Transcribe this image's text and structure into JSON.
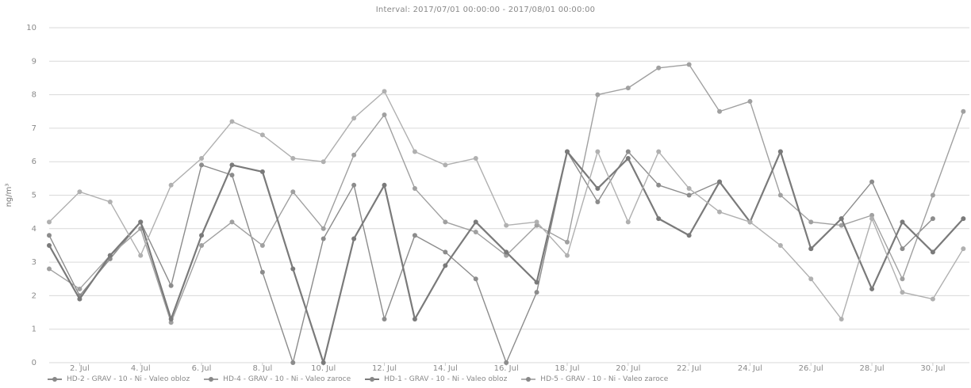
{
  "chart_data": {
    "type": "line",
    "title": "Interval: 2017/07/01 00:00:00 - 2017/08/01 00:00:00",
    "ylabel": "ng/m³",
    "ylim": [
      0,
      10
    ],
    "yticks": [
      0,
      1,
      2,
      3,
      4,
      5,
      6,
      7,
      8,
      9,
      10
    ],
    "xlim": [
      1,
      31.2
    ],
    "xtick_values": [
      2,
      4,
      6,
      8,
      10,
      12,
      14,
      16,
      18,
      20,
      22,
      24,
      26,
      28,
      30
    ],
    "xtick_labels": [
      "2. Jul",
      "4. Jul",
      "6. Jul",
      "8. Jul",
      "10. Jul",
      "12. Jul",
      "14. Jul",
      "16. Jul",
      "18. Jul",
      "20. Jul",
      "22. Jul",
      "24. Jul",
      "26. Jul",
      "28. Jul",
      "30. Jul"
    ],
    "grid": true,
    "legend_position": "bottom",
    "series": [
      {
        "name": "HD-2 - GRAV - 10 - Ni - Valeo obloz",
        "color": "#8c8c8c",
        "values": [
          3.8,
          2.0,
          3.1,
          4.2,
          2.3,
          5.9,
          5.6,
          2.7,
          0.0,
          3.7,
          5.3,
          1.3,
          3.8,
          3.3,
          2.5,
          0.0,
          2.1,
          6.3,
          4.8,
          6.3,
          5.3,
          5.0,
          5.4,
          4.2,
          6.3,
          3.4,
          4.3,
          5.4,
          3.4,
          4.3
        ]
      },
      {
        "name": "HD-4 - GRAV - 10 - Ni - Valeo zaroce",
        "color": "#a0a0a0",
        "values": [
          2.8,
          2.2,
          3.2,
          4.0,
          1.2,
          3.5,
          4.2,
          3.5,
          5.1,
          4.0,
          6.2,
          7.4,
          5.2,
          4.2,
          3.9,
          3.2,
          4.1,
          3.6,
          8.0,
          8.2,
          8.8,
          8.9,
          7.5,
          7.8,
          5.0,
          4.2,
          4.1,
          4.4,
          2.5,
          5.0,
          7.5
        ]
      },
      {
        "name": "HD-1 - GRAV - 10 - Ni - Valeo obloz",
        "color": "#7a7a7a",
        "values": [
          3.5,
          1.9,
          3.2,
          4.2,
          1.3,
          3.8,
          5.9,
          5.7,
          2.8,
          0.0,
          3.7,
          5.3,
          1.3,
          2.9,
          4.2,
          3.3,
          2.4,
          6.3,
          5.2,
          6.1,
          4.3,
          3.8,
          5.4,
          4.2,
          6.3,
          3.4,
          4.3,
          2.2,
          4.2,
          3.3,
          4.3
        ]
      },
      {
        "name": "HD-5 - GRAV - 10 - Ni - Valeo zaroce",
        "color": "#b0b0b0",
        "values": [
          4.2,
          5.1,
          4.8,
          3.2,
          5.3,
          6.1,
          7.2,
          6.8,
          6.1,
          6.0,
          7.3,
          8.1,
          6.3,
          5.9,
          6.1,
          4.1,
          4.2,
          3.2,
          6.3,
          4.2,
          6.3,
          5.2,
          4.5,
          4.2,
          3.5,
          2.5,
          1.3,
          4.3,
          2.1,
          1.9,
          3.4
        ]
      }
    ]
  }
}
